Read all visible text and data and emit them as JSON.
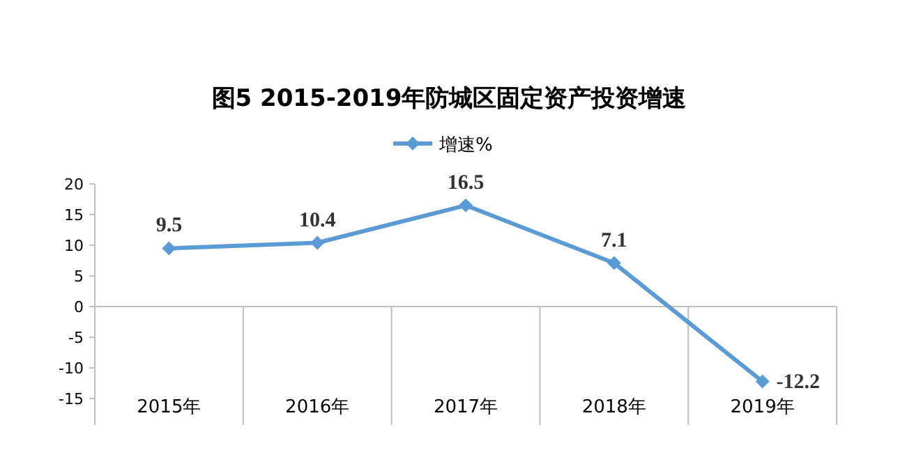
{
  "chart_data": {
    "type": "line",
    "title": "图5 2015-2019年防城区固定资产投资增速",
    "categories": [
      "2015年",
      "2016年",
      "2017年",
      "2018年",
      "2019年"
    ],
    "series": [
      {
        "name": "增速%",
        "color": "#5b9bd5",
        "values": [
          9.5,
          10.4,
          16.5,
          7.1,
          -12.2
        ]
      }
    ],
    "ylim": [
      -19.3,
      20
    ],
    "yticks": [
      -15,
      -10,
      -5,
      0,
      5,
      10,
      15,
      20
    ],
    "marker": "diamond",
    "legend": "top",
    "data_labels": true
  }
}
